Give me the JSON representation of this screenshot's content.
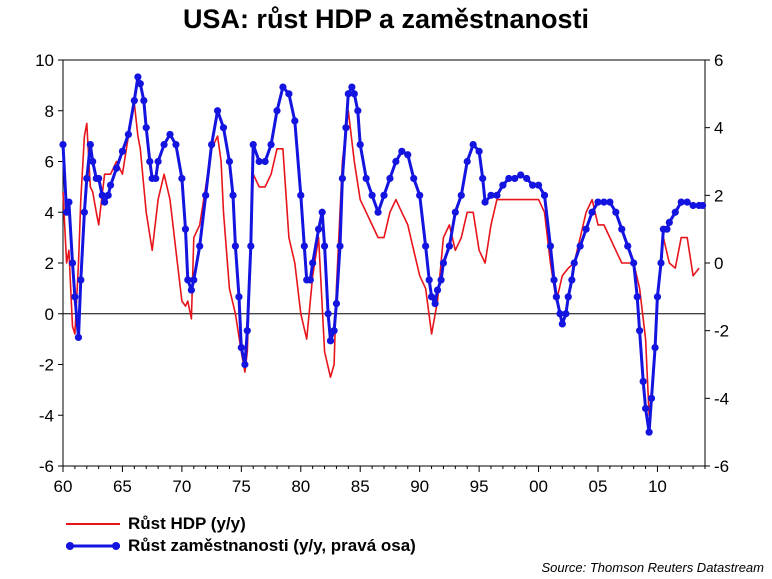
{
  "chart_data": {
    "type": "line",
    "title": "USA: růst HDP a zaměstnanosti",
    "x_ticks": [
      "60",
      "65",
      "70",
      "75",
      "80",
      "85",
      "90",
      "95",
      "00",
      "05",
      "10"
    ],
    "xlim": [
      1960,
      2014
    ],
    "ylim_left": [
      -6,
      10
    ],
    "ylim_right": [
      -6,
      6
    ],
    "yticks_left": [
      -6,
      -4,
      -2,
      0,
      2,
      4,
      6,
      8,
      10
    ],
    "yticks_right": [
      -6,
      -4,
      -2,
      0,
      2,
      4,
      6
    ],
    "zero_line": true,
    "grid": false,
    "legend_placement": "bottom-left",
    "source": "Source: Thomson Reuters Datastream",
    "series": [
      {
        "name": "Růst HDP (y/y)",
        "axis": "left",
        "color": "#e8141b",
        "marker": "none",
        "x": [
          1960.0,
          1960.3,
          1960.5,
          1960.8,
          1961.0,
          1961.3,
          1961.5,
          1961.8,
          1962.0,
          1962.3,
          1962.5,
          1962.8,
          1963.0,
          1963.5,
          1964.0,
          1964.5,
          1965.0,
          1965.5,
          1966.0,
          1966.3,
          1966.5,
          1967.0,
          1967.5,
          1968.0,
          1968.5,
          1969.0,
          1969.5,
          1970.0,
          1970.3,
          1970.5,
          1970.8,
          1971.0,
          1971.5,
          1972.0,
          1972.5,
          1973.0,
          1973.3,
          1973.5,
          1974.0,
          1974.5,
          1975.0,
          1975.3,
          1975.5,
          1976.0,
          1976.5,
          1977.0,
          1977.5,
          1978.0,
          1978.5,
          1979.0,
          1979.5,
          1980.0,
          1980.5,
          1981.0,
          1981.5,
          1982.0,
          1982.5,
          1982.8,
          1983.0,
          1983.5,
          1984.0,
          1984.5,
          1985.0,
          1985.5,
          1986.0,
          1986.5,
          1987.0,
          1987.5,
          1988.0,
          1988.5,
          1989.0,
          1989.5,
          1990.0,
          1990.5,
          1991.0,
          1991.5,
          1992.0,
          1992.5,
          1993.0,
          1993.5,
          1994.0,
          1994.5,
          1995.0,
          1995.5,
          1996.0,
          1996.5,
          1997.0,
          1997.5,
          1998.0,
          1998.5,
          1999.0,
          1999.5,
          2000.0,
          2000.5,
          2001.0,
          2001.5,
          2002.0,
          2002.5,
          2003.0,
          2003.5,
          2004.0,
          2004.5,
          2005.0,
          2005.5,
          2006.0,
          2006.5,
          2007.0,
          2007.5,
          2008.0,
          2008.5,
          2009.0,
          2009.3,
          2009.5,
          2010.0,
          2010.5,
          2011.0,
          2011.5,
          2012.0,
          2012.5,
          2013.0,
          2013.5
        ],
        "values": [
          4.8,
          2.0,
          2.5,
          -0.5,
          -0.8,
          2.0,
          4.5,
          7.0,
          7.5,
          5.0,
          4.8,
          4.0,
          3.5,
          5.5,
          5.5,
          6.0,
          5.5,
          7.0,
          8.3,
          7.0,
          6.5,
          4.0,
          2.5,
          4.5,
          5.5,
          4.5,
          2.5,
          0.5,
          0.3,
          0.5,
          -0.2,
          3.0,
          3.5,
          5.0,
          6.5,
          7.0,
          6.0,
          4.0,
          1.0,
          0.0,
          -1.5,
          -2.3,
          -1.5,
          5.5,
          5.0,
          5.0,
          5.5,
          6.5,
          6.5,
          3.0,
          2.0,
          0.0,
          -1.0,
          1.5,
          3.0,
          -1.5,
          -2.5,
          -2.0,
          1.0,
          6.0,
          8.0,
          6.0,
          4.5,
          4.0,
          3.5,
          3.0,
          3.0,
          4.0,
          4.5,
          4.0,
          3.5,
          2.5,
          1.5,
          1.0,
          -0.8,
          0.5,
          3.0,
          3.5,
          2.5,
          3.0,
          4.0,
          4.0,
          2.5,
          2.0,
          3.5,
          4.5,
          4.5,
          4.5,
          4.5,
          4.5,
          4.5,
          4.5,
          4.5,
          4.0,
          2.0,
          0.5,
          1.5,
          1.8,
          2.0,
          3.0,
          4.0,
          4.5,
          3.5,
          3.5,
          3.0,
          2.5,
          2.0,
          2.0,
          2.0,
          1.0,
          -1.0,
          -4.0,
          -3.5,
          0.5,
          3.0,
          2.0,
          1.8,
          3.0,
          3.0,
          1.5,
          1.8
        ]
      },
      {
        "name": "Růst zaměstnanosti (y/y, pravá osa)",
        "axis": "right",
        "color": "#1414e0",
        "marker": "circle",
        "x": [
          1960.0,
          1960.3,
          1960.5,
          1960.8,
          1961.0,
          1961.3,
          1961.5,
          1961.8,
          1962.0,
          1962.3,
          1962.5,
          1962.8,
          1963.0,
          1963.3,
          1963.5,
          1963.8,
          1964.0,
          1964.5,
          1965.0,
          1965.5,
          1966.0,
          1966.3,
          1966.5,
          1966.8,
          1967.0,
          1967.3,
          1967.5,
          1967.8,
          1968.0,
          1968.5,
          1969.0,
          1969.5,
          1970.0,
          1970.3,
          1970.5,
          1970.8,
          1971.0,
          1971.5,
          1972.0,
          1972.5,
          1973.0,
          1973.5,
          1974.0,
          1974.3,
          1974.5,
          1974.8,
          1975.0,
          1975.3,
          1975.5,
          1975.8,
          1976.0,
          1976.5,
          1977.0,
          1977.5,
          1978.0,
          1978.5,
          1979.0,
          1979.5,
          1980.0,
          1980.3,
          1980.5,
          1980.8,
          1981.0,
          1981.5,
          1981.8,
          1982.0,
          1982.3,
          1982.5,
          1982.8,
          1983.0,
          1983.3,
          1983.5,
          1983.8,
          1984.0,
          1984.3,
          1984.5,
          1984.8,
          1985.0,
          1985.5,
          1986.0,
          1986.5,
          1987.0,
          1987.5,
          1988.0,
          1988.5,
          1989.0,
          1989.5,
          1990.0,
          1990.5,
          1990.8,
          1991.0,
          1991.3,
          1991.5,
          1991.8,
          1992.0,
          1992.5,
          1993.0,
          1993.5,
          1994.0,
          1994.5,
          1995.0,
          1995.3,
          1995.5,
          1996.0,
          1996.5,
          1997.0,
          1997.5,
          1998.0,
          1998.5,
          1999.0,
          1999.5,
          2000.0,
          2000.5,
          2001.0,
          2001.3,
          2001.5,
          2001.8,
          2002.0,
          2002.3,
          2002.5,
          2002.8,
          2003.0,
          2003.5,
          2004.0,
          2004.5,
          2005.0,
          2005.5,
          2006.0,
          2006.5,
          2007.0,
          2007.5,
          2008.0,
          2008.3,
          2008.5,
          2008.8,
          2009.0,
          2009.3,
          2009.5,
          2009.8,
          2010.0,
          2010.3,
          2010.5,
          2010.8,
          2011.0,
          2011.5,
          2012.0,
          2012.5,
          2013.0,
          2013.5,
          2013.8
        ],
        "values": [
          3.5,
          1.5,
          1.8,
          0.0,
          -1.0,
          -2.2,
          -0.5,
          1.5,
          2.5,
          3.5,
          3.0,
          2.5,
          2.5,
          2.0,
          1.8,
          2.0,
          2.3,
          2.8,
          3.3,
          3.8,
          4.8,
          5.5,
          5.3,
          4.8,
          4.0,
          3.0,
          2.5,
          2.5,
          3.0,
          3.5,
          3.8,
          3.5,
          2.5,
          1.0,
          -0.5,
          -0.8,
          -0.5,
          0.5,
          2.0,
          3.5,
          4.5,
          4.0,
          3.0,
          2.0,
          0.5,
          -1.0,
          -2.5,
          -3.0,
          -2.0,
          0.5,
          3.5,
          3.0,
          3.0,
          3.5,
          4.5,
          5.2,
          5.0,
          4.2,
          2.0,
          0.5,
          -0.5,
          -0.5,
          0.0,
          1.0,
          1.5,
          0.5,
          -1.5,
          -2.3,
          -2.0,
          -1.2,
          0.5,
          2.5,
          4.0,
          5.0,
          5.2,
          5.0,
          4.5,
          3.5,
          2.5,
          2.0,
          1.5,
          2.0,
          2.5,
          3.0,
          3.3,
          3.2,
          2.5,
          2.0,
          0.5,
          -0.5,
          -1.0,
          -1.2,
          -0.8,
          -0.5,
          0.0,
          0.5,
          1.5,
          2.0,
          3.0,
          3.5,
          3.3,
          2.5,
          1.8,
          2.0,
          2.0,
          2.3,
          2.5,
          2.5,
          2.6,
          2.5,
          2.3,
          2.3,
          2.0,
          0.5,
          -0.5,
          -1.0,
          -1.5,
          -1.8,
          -1.5,
          -1.0,
          -0.5,
          0.0,
          0.5,
          1.0,
          1.5,
          1.8,
          1.8,
          1.8,
          1.5,
          1.0,
          0.5,
          0.0,
          -1.0,
          -2.0,
          -3.5,
          -4.3,
          -5.0,
          -4.0,
          -2.5,
          -1.0,
          0.0,
          1.0,
          1.0,
          1.2,
          1.5,
          1.8,
          1.8,
          1.7,
          1.7,
          1.7
        ]
      }
    ]
  }
}
